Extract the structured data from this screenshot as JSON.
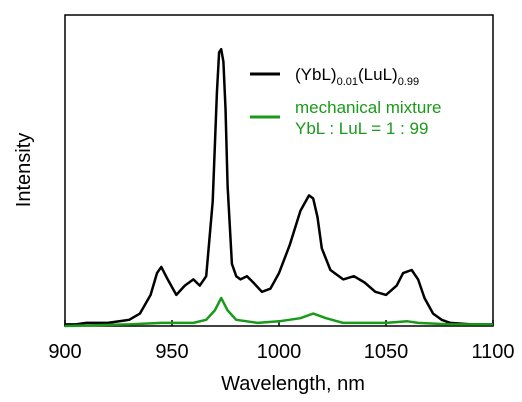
{
  "chart_data": {
    "type": "line",
    "x_label": "Wavelength, nm",
    "y_label": "Intensity",
    "xlim": [
      900,
      1100
    ],
    "xticks": [
      900,
      950,
      1000,
      1050,
      1100
    ],
    "ylim": [
      0,
      100
    ],
    "series": [
      {
        "name": "(YbL)0.01(LuL)0.99",
        "color": "#000000",
        "x": [
          900,
          905,
          910,
          920,
          930,
          935,
          940,
          943,
          945,
          948,
          952,
          956,
          960,
          963,
          966,
          969,
          971,
          972,
          973,
          974,
          975,
          976,
          978,
          980,
          982,
          985,
          988,
          992,
          996,
          1000,
          1005,
          1010,
          1014,
          1016,
          1018,
          1020,
          1024,
          1030,
          1035,
          1040,
          1045,
          1050,
          1055,
          1058,
          1062,
          1065,
          1068,
          1072,
          1076,
          1080,
          1090,
          1100
        ],
        "values": [
          0.5,
          0.5,
          1,
          1,
          2,
          4,
          10,
          17,
          19,
          15,
          10,
          13,
          15,
          13,
          16,
          40,
          75,
          88,
          89,
          85,
          70,
          45,
          20,
          16,
          15,
          16,
          14,
          11,
          12,
          17,
          26,
          37,
          42,
          41,
          35,
          25,
          18,
          15,
          16,
          14,
          11,
          10,
          13,
          17,
          18,
          15,
          9,
          4,
          2,
          1,
          0.5,
          0.5
        ]
      },
      {
        "name": "mechanical mixture\nYbL : LuL = 1 : 99",
        "color": "#1a9a1a",
        "x": [
          900,
          930,
          945,
          960,
          966,
          970,
          973,
          976,
          980,
          990,
          1000,
          1010,
          1016,
          1022,
          1030,
          1050,
          1060,
          1065,
          1080,
          1100
        ],
        "values": [
          0,
          0.5,
          1,
          1,
          2,
          5,
          9,
          5,
          2,
          1,
          1.5,
          2.5,
          4,
          2.5,
          1,
          1,
          1.5,
          1,
          0.5,
          0.5
        ]
      }
    ]
  }
}
